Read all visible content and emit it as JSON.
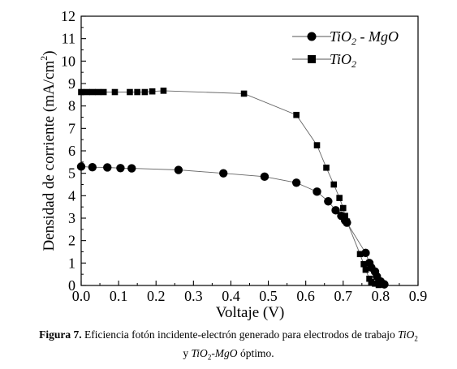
{
  "chart_data": {
    "type": "line",
    "xlabel": "Voltaje (V)",
    "ylabel": "Densidad de corriente (mA/cm²)",
    "ylabel_parts": {
      "main": "Densidad de corriente (mA/cm",
      "sup": "2",
      "end": ")"
    },
    "xlim": [
      0.0,
      0.9
    ],
    "ylim": [
      0,
      12
    ],
    "x_ticks": [
      "0.0",
      "0.1",
      "0.2",
      "0.3",
      "0.4",
      "0.5",
      "0.6",
      "0.7",
      "0.8",
      "0.9"
    ],
    "y_ticks": [
      "0",
      "1",
      "2",
      "3",
      "4",
      "5",
      "6",
      "7",
      "8",
      "9",
      "10",
      "11",
      "12"
    ],
    "grid": false,
    "legend_position": "top-right",
    "series": [
      {
        "name": "TiO2 - MgO",
        "name_parts": {
          "pre": "TiO",
          "sub": "2",
          "post": " - MgO"
        },
        "marker": "circle",
        "x": [
          0.0,
          0.03,
          0.07,
          0.105,
          0.135,
          0.26,
          0.38,
          0.49,
          0.575,
          0.63,
          0.66,
          0.68,
          0.695,
          0.705,
          0.71,
          0.76,
          0.77,
          0.775,
          0.785,
          0.79,
          0.8,
          0.81
        ],
        "y": [
          5.3,
          5.27,
          5.26,
          5.23,
          5.22,
          5.15,
          5.0,
          4.85,
          4.58,
          4.18,
          3.75,
          3.35,
          3.1,
          2.9,
          2.8,
          1.45,
          1.0,
          0.8,
          0.62,
          0.4,
          0.18,
          0.05
        ]
      },
      {
        "name": "TiO2",
        "name_parts": {
          "pre": "TiO",
          "sub": "2",
          "post": ""
        },
        "marker": "square",
        "x": [
          0.0,
          0.015,
          0.03,
          0.045,
          0.06,
          0.09,
          0.13,
          0.15,
          0.17,
          0.19,
          0.22,
          0.435,
          0.575,
          0.63,
          0.655,
          0.675,
          0.69,
          0.7,
          0.705,
          0.71,
          0.745,
          0.755,
          0.76,
          0.77,
          0.775,
          0.785,
          0.795
        ],
        "y": [
          8.62,
          8.62,
          8.62,
          8.62,
          8.62,
          8.62,
          8.62,
          8.62,
          8.62,
          8.65,
          8.68,
          8.55,
          7.6,
          6.25,
          5.25,
          4.5,
          3.9,
          3.45,
          3.1,
          2.85,
          1.4,
          0.95,
          0.7,
          0.3,
          0.15,
          0.08,
          0.02
        ]
      }
    ]
  },
  "caption": {
    "figure_label": "Figura 7.",
    "text_line1": " Eficiencia fotón incidente-electrón generado para electrodos de trabajo ",
    "line1_italic": "TiO",
    "line1_sub": "2",
    "line2_pre": "y ",
    "line2_italic1": "TiO",
    "line2_sub": "2",
    "line2_italic2": "-MgO",
    "line2_post": " óptimo."
  }
}
